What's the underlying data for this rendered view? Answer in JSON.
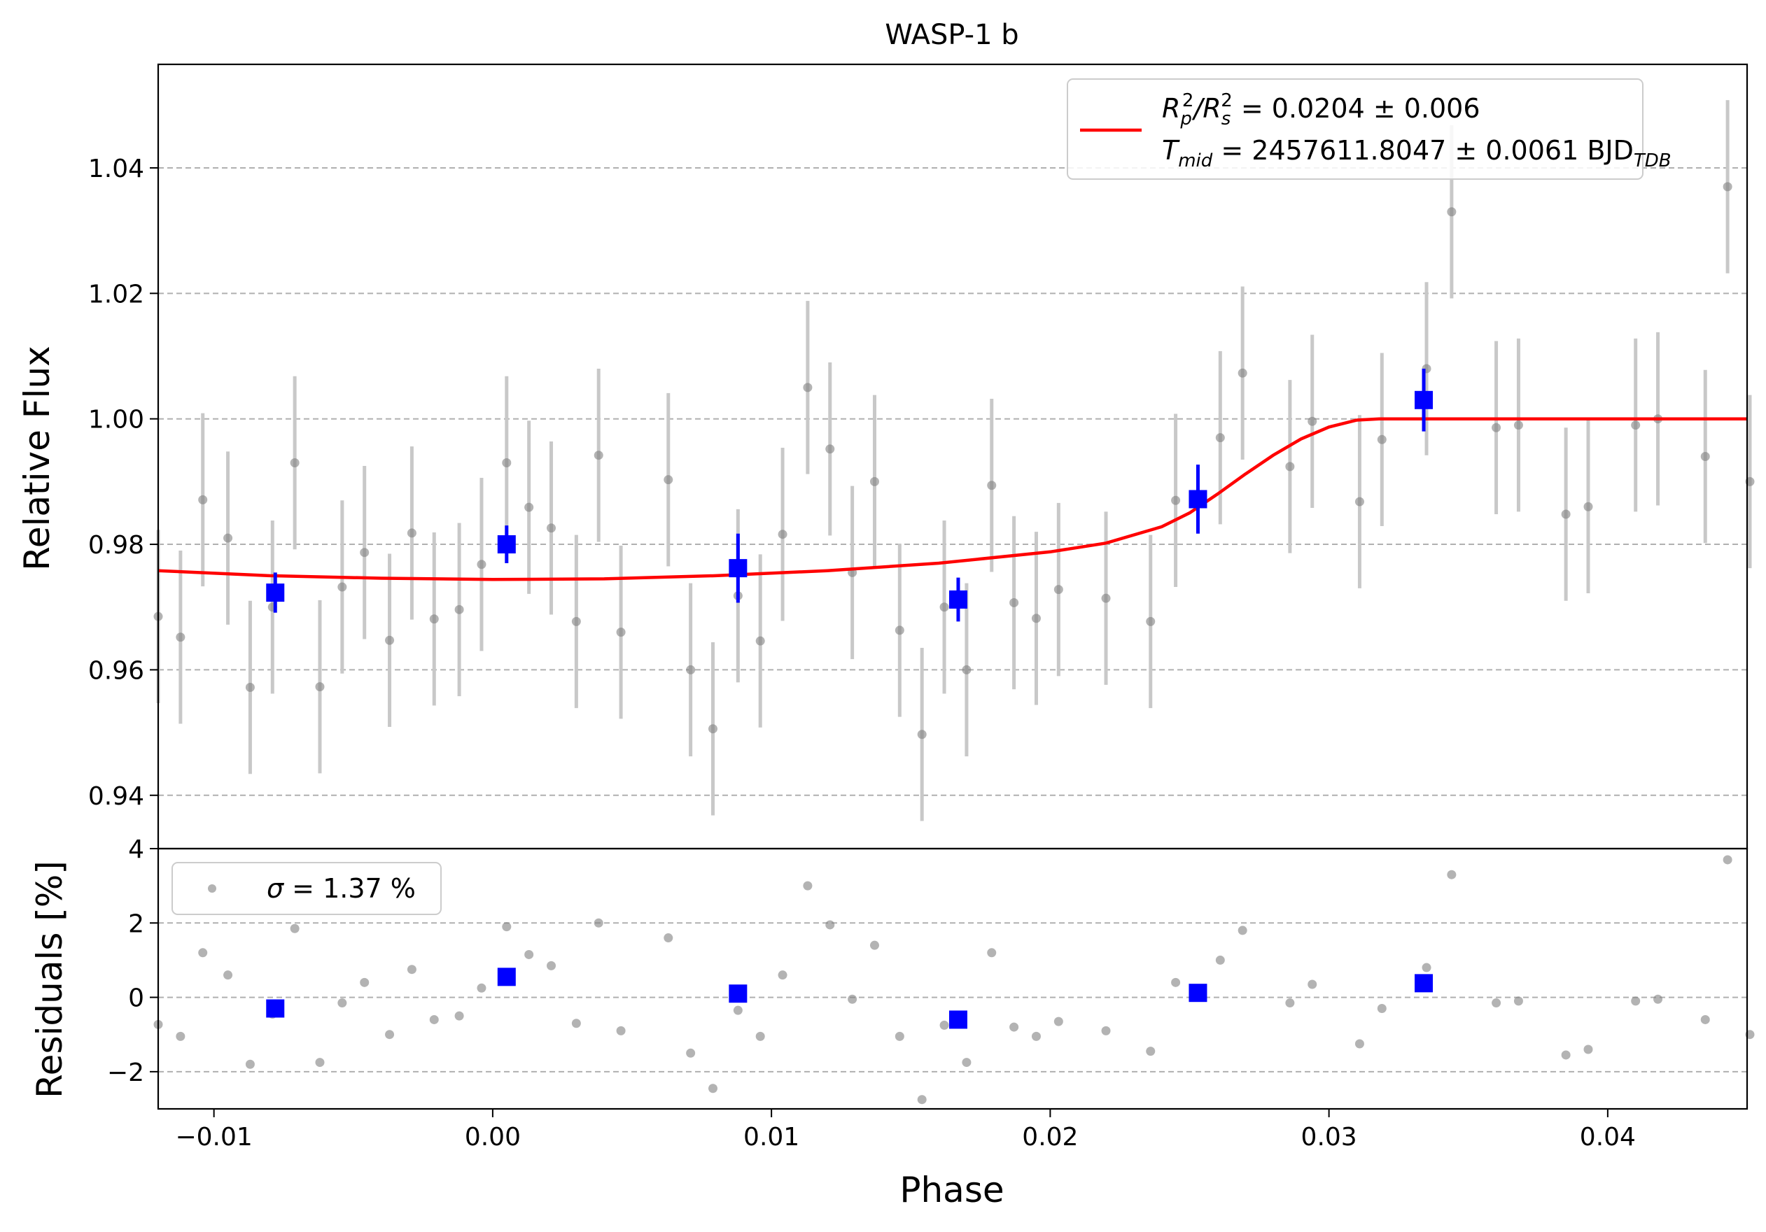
{
  "title": "WASP-1 b",
  "colors": {
    "fit": "#ff0000",
    "binned": "#0000ff",
    "raw_points": "#808080",
    "raw_errorbars": "#c8c8c8",
    "grid": "#b0b0b0"
  },
  "chart_data": [
    {
      "panel": "light-curve",
      "type": "scatter",
      "title": "WASP-1 b",
      "xlabel": "",
      "ylabel": "Relative Flux",
      "xlim": [
        -0.012,
        0.045
      ],
      "ylim": [
        0.9315,
        1.0565
      ],
      "y_ticks": [
        0.94,
        0.96,
        0.98,
        1.0,
        1.02,
        1.04
      ],
      "y_tick_labels": [
        "0.94",
        "0.96",
        "0.98",
        "1.00",
        "1.02",
        "1.04"
      ],
      "grid": "horizontal dashed",
      "legend": {
        "placement": "upper right",
        "line1_main": "R",
        "line1_sub_p": "p",
        "line1_sup_2a": "2",
        "line1_slash": "/R",
        "line1_sub_s": "s",
        "line1_sup_2b": "2",
        "line1_value": " = 0.0204 ± 0.006",
        "line2_main": "T",
        "line2_sub_mid": "mid",
        "line2_value": " = 2457611.8047 ± 0.0061 BJD",
        "line2_sub_tdb": "TDB"
      },
      "raw": {
        "x": [
          -0.012,
          -0.0112,
          -0.0104,
          -0.0095,
          -0.0087,
          -0.0079,
          -0.0071,
          -0.0062,
          -0.0054,
          -0.0046,
          -0.0037,
          -0.0029,
          -0.0021,
          -0.0012,
          -0.0004,
          0.0005,
          0.0013,
          0.0021,
          0.003,
          0.0038,
          0.0046,
          0.0063,
          0.0071,
          0.0079,
          0.0088,
          0.0096,
          0.0104,
          0.0113,
          0.0121,
          0.0129,
          0.0137,
          0.0146,
          0.0154,
          0.0162,
          0.017,
          0.0179,
          0.0187,
          0.0195,
          0.0203,
          0.022,
          0.0236,
          0.0245,
          0.0261,
          0.0269,
          0.0286,
          0.0294,
          0.0311,
          0.0319,
          0.0335,
          0.0344,
          0.036,
          0.0368,
          0.0385,
          0.0393,
          0.041,
          0.0418,
          0.0435,
          0.0443,
          0.0451
        ],
        "y": [
          0.9685,
          0.9652,
          0.9871,
          0.981,
          0.9572,
          0.97,
          0.993,
          0.9573,
          0.9732,
          0.9787,
          0.9647,
          0.9818,
          0.9681,
          0.9696,
          0.9768,
          0.993,
          0.9859,
          0.9826,
          0.9677,
          0.9942,
          0.966,
          0.9903,
          0.96,
          0.9506,
          0.9718,
          0.9646,
          0.9816,
          1.005,
          0.9952,
          0.9755,
          0.99,
          0.9663,
          0.9497,
          0.97,
          0.96,
          0.9894,
          0.9707,
          0.9682,
          0.9728,
          0.9714,
          0.9677,
          0.987,
          0.997,
          1.0073,
          0.9924,
          0.9996,
          0.9868,
          0.9967,
          1.008,
          1.033,
          0.9986,
          0.999,
          0.9848,
          0.986,
          0.999,
          1.0,
          0.994,
          1.037,
          0.99
        ],
        "err": 0.0138
      },
      "binned": {
        "x": [
          -0.0078,
          0.0005,
          0.0088,
          0.0167,
          0.0253,
          0.0334
        ],
        "y": [
          0.9723,
          0.98,
          0.9762,
          0.9712,
          0.9872,
          1.003
        ],
        "err": [
          0.0032,
          0.003,
          0.0055,
          0.0035,
          0.0055,
          0.005
        ]
      },
      "model": {
        "name": "transit fit",
        "x": [
          -0.012,
          -0.008,
          -0.004,
          0.0,
          0.004,
          0.008,
          0.012,
          0.016,
          0.02,
          0.022,
          0.024,
          0.025,
          0.026,
          0.027,
          0.028,
          0.029,
          0.03,
          0.031,
          0.0318,
          0.0325,
          0.045
        ],
        "y": [
          0.9758,
          0.975,
          0.9746,
          0.9744,
          0.9745,
          0.975,
          0.9758,
          0.977,
          0.9788,
          0.9802,
          0.9828,
          0.985,
          0.988,
          0.9912,
          0.9942,
          0.9968,
          0.9987,
          0.9998,
          1.0,
          1.0,
          1.0
        ]
      }
    },
    {
      "panel": "residuals",
      "type": "scatter",
      "xlabel": "Phase",
      "ylabel": "Residuals [%]",
      "xlim": [
        -0.012,
        0.045
      ],
      "ylim": [
        -3.0,
        4.0
      ],
      "x_ticks": [
        -0.01,
        0.0,
        0.01,
        0.02,
        0.03,
        0.04
      ],
      "x_tick_labels": [
        "−0.01",
        "0.00",
        "0.01",
        "0.02",
        "0.03",
        "0.04"
      ],
      "y_ticks": [
        -2,
        0,
        2,
        4
      ],
      "y_tick_labels": [
        "−2",
        "0",
        "2",
        "4"
      ],
      "grid": "horizontal dashed",
      "legend": {
        "placement": "upper left",
        "sigma_symbol": "σ",
        "text": " = 1.37 %"
      },
      "raw": {
        "x": [
          -0.012,
          -0.0112,
          -0.0104,
          -0.0095,
          -0.0087,
          -0.0079,
          -0.0071,
          -0.0062,
          -0.0054,
          -0.0046,
          -0.0037,
          -0.0029,
          -0.0021,
          -0.0012,
          -0.0004,
          0.0005,
          0.0013,
          0.0021,
          0.003,
          0.0038,
          0.0046,
          0.0063,
          0.0071,
          0.0079,
          0.0088,
          0.0096,
          0.0104,
          0.0113,
          0.0121,
          0.0129,
          0.0137,
          0.0146,
          0.0154,
          0.0162,
          0.017,
          0.0179,
          0.0187,
          0.0195,
          0.0203,
          0.022,
          0.0236,
          0.0245,
          0.0261,
          0.0269,
          0.0286,
          0.0294,
          0.0311,
          0.0319,
          0.0335,
          0.0344,
          0.036,
          0.0368,
          0.0385,
          0.0393,
          0.041,
          0.0418,
          0.0435,
          0.0443,
          0.0451
        ],
        "y": [
          -0.73,
          -1.05,
          1.2,
          0.6,
          -1.8,
          -0.45,
          1.85,
          -1.75,
          -0.15,
          0.4,
          -1.0,
          0.75,
          -0.6,
          -0.5,
          0.25,
          1.9,
          1.15,
          0.85,
          -0.7,
          2.0,
          -0.9,
          1.6,
          -1.5,
          -2.45,
          -0.35,
          -1.05,
          0.6,
          3.0,
          1.95,
          -0.05,
          1.4,
          -1.05,
          -2.75,
          -0.75,
          -1.75,
          1.2,
          -0.8,
          -1.05,
          -0.65,
          -0.9,
          -1.45,
          0.4,
          1.0,
          1.8,
          -0.15,
          0.35,
          -1.25,
          -0.3,
          0.8,
          3.3,
          -0.15,
          -0.1,
          -1.55,
          -1.4,
          -0.1,
          -0.05,
          -0.6,
          3.7,
          -1.0
        ]
      },
      "binned": {
        "x": [
          -0.0078,
          0.0005,
          0.0088,
          0.0167,
          0.0253,
          0.0334
        ],
        "y": [
          -0.3,
          0.55,
          0.1,
          -0.6,
          0.12,
          0.38
        ]
      }
    }
  ]
}
